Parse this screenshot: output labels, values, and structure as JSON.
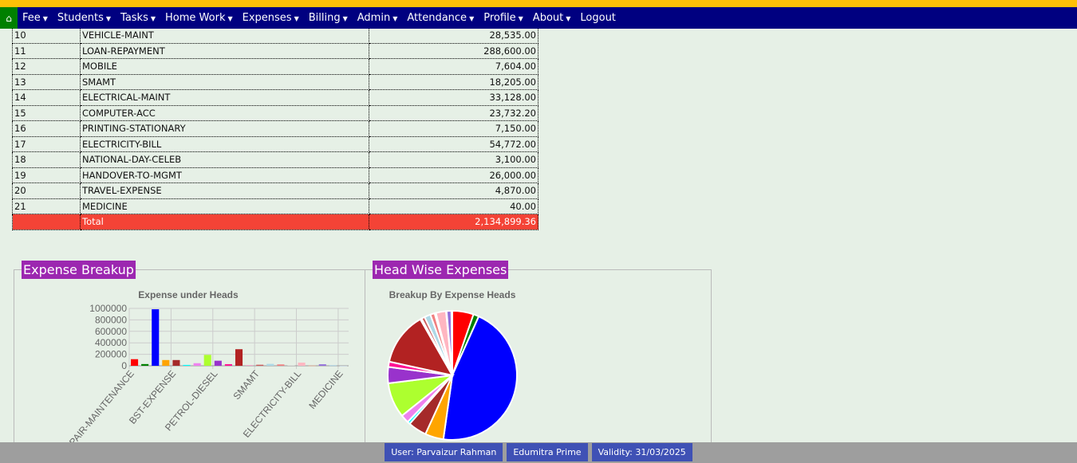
{
  "nav": {
    "home_icon": "home-icon",
    "items": [
      "Fee",
      "Students",
      "Tasks",
      "Home Work",
      "Expenses",
      "Billing",
      "Admin",
      "Attendance",
      "Profile",
      "About"
    ],
    "logout": "Logout"
  },
  "table": {
    "rows": [
      [
        "10",
        "VEHICLE-MAINT",
        "28,535.00"
      ],
      [
        "11",
        "LOAN-REPAYMENT",
        "288,600.00"
      ],
      [
        "12",
        "MOBILE",
        "7,604.00"
      ],
      [
        "13",
        "SMAMT",
        "18,205.00"
      ],
      [
        "14",
        "ELECTRICAL-MAINT",
        "33,128.00"
      ],
      [
        "15",
        "COMPUTER-ACC",
        "23,732.20"
      ],
      [
        "16",
        "PRINTING-STATIONARY",
        "7,150.00"
      ],
      [
        "17",
        "ELECTRICITY-BILL",
        "54,772.00"
      ],
      [
        "18",
        "NATIONAL-DAY-CELEB",
        "3,100.00"
      ],
      [
        "19",
        "HANDOVER-TO-MGMT",
        "26,000.00"
      ],
      [
        "20",
        "TRAVEL-EXPENSE",
        "4,870.00"
      ],
      [
        "21",
        "MEDICINE",
        "40.00"
      ]
    ],
    "total_label": "Total",
    "total_value": "2,134,899.36"
  },
  "sections": {
    "left_legend": "Expense Breakup",
    "right_legend": "Head Wise Expenses"
  },
  "colors": [
    "#ff0000",
    "#008000",
    "#0000ff",
    "#ffa500",
    "#a52a2a",
    "#00ffff",
    "#ee82ee",
    "#adff2f",
    "#9932cc",
    "#ff1493",
    "#b22222",
    "#ff69b4",
    "#cd5c5c",
    "#add8e6",
    "#f08080",
    "#d3d3d3",
    "#ffb6c1",
    "#ffa07a",
    "#9370db",
    "#87cefa",
    "#b0c4de"
  ],
  "chart_data": [
    {
      "type": "bar",
      "title": "Expense under Heads",
      "ylim": [
        0,
        1000000
      ],
      "yticks": [
        "1000000",
        "800000",
        "600000",
        "400000",
        "200000",
        "0"
      ],
      "grid": true,
      "categories": [
        "REPAIR-MAINTENANCE",
        "",
        "",
        "",
        "BST-EXPENSE",
        "",
        "",
        "",
        "PETROL-DIESEL",
        "",
        "",
        "",
        "SMAMT",
        "",
        "",
        "",
        "ELECTRICITY-BILL",
        "",
        "",
        "",
        "MEDICINE"
      ],
      "values": [
        115000,
        30000,
        985000,
        100000,
        100000,
        15000,
        45000,
        190000,
        88000,
        28535,
        288600,
        7604,
        18205,
        33128,
        23732.2,
        7150,
        54772,
        3100,
        26000,
        4870,
        40
      ]
    },
    {
      "type": "pie",
      "title": "Breakup By Expense Heads",
      "values_source": "same as bar"
    }
  ],
  "footer": {
    "user": "User: Parvaizur Rahman",
    "product": "Edumitra Prime",
    "validity": "Validity: 31/03/2025"
  }
}
